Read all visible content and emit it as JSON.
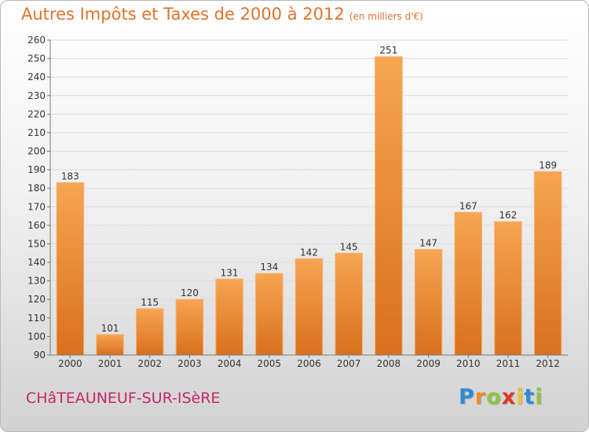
{
  "chart_data": {
    "type": "bar",
    "title": "Autres Impôts et Taxes de 2000 à 2012",
    "subtitle": "(en milliers d'€)",
    "categories": [
      "2000",
      "2001",
      "2002",
      "2003",
      "2004",
      "2005",
      "2006",
      "2007",
      "2008",
      "2009",
      "2010",
      "2011",
      "2012"
    ],
    "values": [
      183,
      101,
      115,
      120,
      131,
      134,
      142,
      145,
      251,
      147,
      167,
      162,
      189
    ],
    "ylim": [
      90,
      260
    ],
    "ytick_step": 10,
    "grid": true,
    "bar_color": "#e98a3a"
  },
  "footer": {
    "location": "CHâTEAUNEUF-SUR-ISèRE",
    "brand_letters": [
      "P",
      "r",
      "o",
      "x",
      "i",
      "t",
      "i"
    ],
    "brand_colors": [
      "#2f8bd6",
      "#f08a24",
      "#8dc63f",
      "#e2332b",
      "#f2c12e",
      "#2f8bd6",
      "#8dc63f"
    ]
  }
}
